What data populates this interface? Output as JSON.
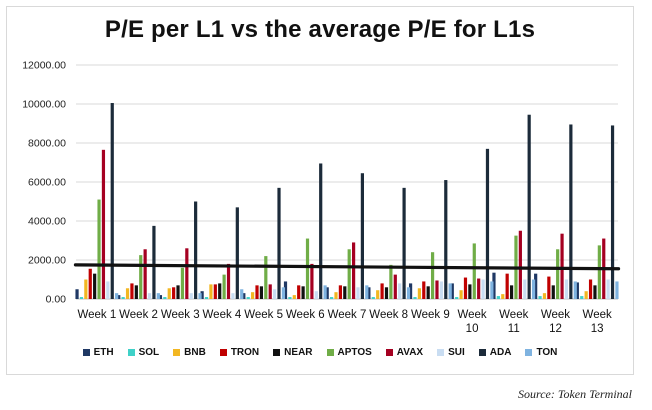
{
  "chart_data": {
    "type": "bar",
    "title": "P/E per L1 vs the average P/E for L1s",
    "xlabel": "",
    "ylabel": "",
    "ylim": [
      0,
      12000
    ],
    "yticks": [
      "12000.00",
      "10000.00",
      "8000.00",
      "6000.00",
      "4000.00",
      "2000.00",
      "0.00"
    ],
    "categories": [
      "Week 1",
      "Week 2",
      "Week 3",
      "Week 4",
      "Week 5",
      "Week 6",
      "Week 7",
      "Week 8",
      "Week 9",
      "Week 10",
      "Week 11",
      "Week 12",
      "Week 13"
    ],
    "category_lines": [
      [
        "Week 1"
      ],
      [
        "Week 2"
      ],
      [
        "Week 3"
      ],
      [
        "Week 4"
      ],
      [
        "Week 5"
      ],
      [
        "Week 6"
      ],
      [
        "Week 7"
      ],
      [
        "Week 8"
      ],
      [
        "Week 9"
      ],
      [
        "Week",
        "10"
      ],
      [
        "Week",
        "11"
      ],
      [
        "Week",
        "12"
      ],
      [
        "Week",
        "13"
      ]
    ],
    "grid": true,
    "legend_position": "bottom",
    "series": [
      {
        "name": "ETH",
        "color": "#1f3864",
        "values": [
          500,
          200,
          200,
          400,
          300,
          900,
          600,
          600,
          800,
          800,
          1350,
          1300,
          850
        ]
      },
      {
        "name": "SOL",
        "color": "#3fd1c8",
        "values": [
          100,
          100,
          100,
          100,
          100,
          100,
          100,
          100,
          100,
          100,
          150,
          150,
          150
        ]
      },
      {
        "name": "BNB",
        "color": "#f2b722",
        "values": [
          1000,
          550,
          550,
          750,
          350,
          200,
          350,
          450,
          550,
          450,
          250,
          300,
          400
        ]
      },
      {
        "name": "TRON",
        "color": "#c00000",
        "values": [
          1550,
          800,
          600,
          750,
          700,
          700,
          700,
          800,
          900,
          1100,
          1300,
          1150,
          1000
        ]
      },
      {
        "name": "NEAR",
        "color": "#111111",
        "values": [
          1300,
          700,
          700,
          800,
          650,
          650,
          650,
          600,
          650,
          750,
          700,
          700,
          700
        ]
      },
      {
        "name": "APTOS",
        "color": "#70ad47",
        "values": [
          5100,
          2250,
          1600,
          1250,
          2200,
          3100,
          2550,
          1750,
          2400,
          2850,
          3250,
          2550,
          2750
        ]
      },
      {
        "name": "AVAX",
        "color": "#a50021",
        "values": [
          7650,
          2550,
          2600,
          1800,
          750,
          1800,
          2900,
          1250,
          950,
          1050,
          3500,
          3350,
          3100
        ]
      },
      {
        "name": "SUI",
        "color": "#c9ddf2",
        "values": [
          900,
          300,
          300,
          300,
          500,
          400,
          600,
          800,
          900,
          1000,
          1000,
          1000,
          1000
        ]
      },
      {
        "name": "ADA",
        "color": "#1c2b3a",
        "values": [
          10050,
          3750,
          5000,
          4700,
          5700,
          6950,
          6450,
          5700,
          6100,
          7700,
          9450,
          8950,
          8900
        ]
      },
      {
        "name": "TON",
        "color": "#7fb3e0",
        "values": [
          300,
          300,
          300,
          500,
          600,
          700,
          700,
          600,
          800,
          900,
          1000,
          900,
          900
        ]
      }
    ],
    "average_line": {
      "values": [
        1750,
        1720,
        1690,
        1660,
        1650,
        1640,
        1630,
        1610,
        1600,
        1590,
        1580,
        1560,
        1550
      ],
      "color": "#111111"
    }
  },
  "source_text": "Source: Token Terminal"
}
